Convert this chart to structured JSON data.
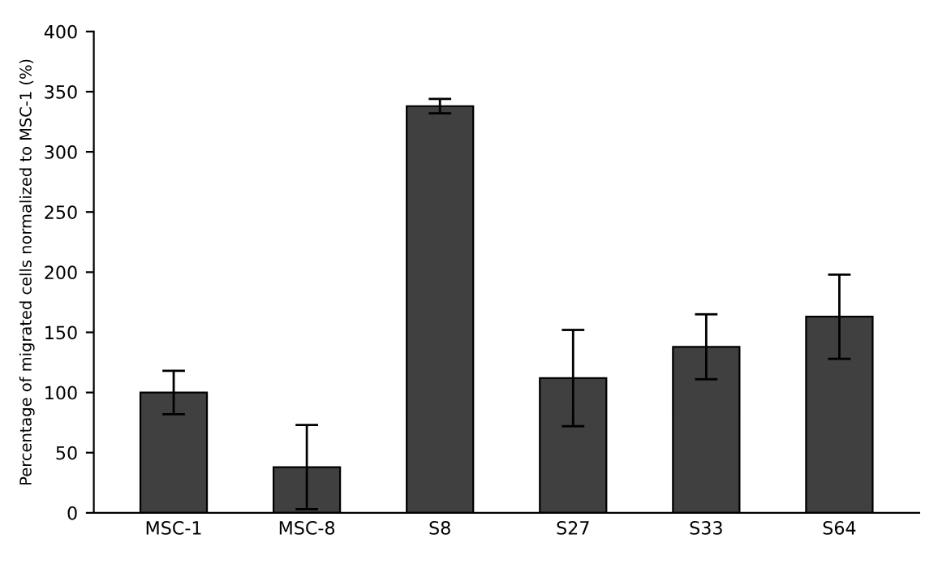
{
  "chart_data": {
    "type": "bar",
    "ylabel": "Percentage of migrated cells normalized to MSC-1 (%)",
    "categories": [
      "MSC-1",
      "MSC-8",
      "S8",
      "S27",
      "S33",
      "S64"
    ],
    "values": [
      100,
      38,
      338,
      112,
      138,
      163
    ],
    "errors": [
      18,
      35,
      6,
      40,
      27,
      35
    ],
    "color": "#404040",
    "ylim": [
      0,
      400
    ],
    "yticks": [
      0,
      50,
      100,
      150,
      200,
      250,
      300,
      350,
      400
    ],
    "grid": false
  }
}
